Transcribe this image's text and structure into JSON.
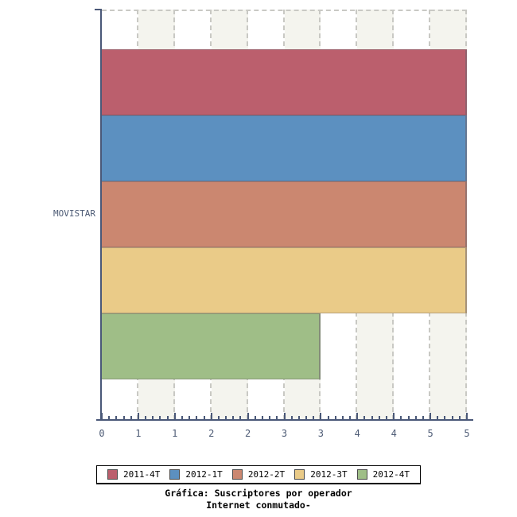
{
  "chart_data": {
    "type": "bar",
    "orientation": "horizontal",
    "categories": [
      "MOVISTAR"
    ],
    "series": [
      {
        "name": "2011-4T",
        "values": [
          5
        ],
        "color": "#bb5f6d"
      },
      {
        "name": "2012-1T",
        "values": [
          5
        ],
        "color": "#5c90c0"
      },
      {
        "name": "2012-2T",
        "values": [
          5
        ],
        "color": "#cb8770"
      },
      {
        "name": "2012-3T",
        "values": [
          5
        ],
        "color": "#eacb88"
      },
      {
        "name": "2012-4T",
        "values": [
          3
        ],
        "color": "#9fbe87"
      }
    ],
    "xlim": [
      0,
      5
    ],
    "x_tick_labels": [
      "0",
      "1",
      "1",
      "2",
      "2",
      "3",
      "3",
      "4",
      "4",
      "5",
      "5"
    ],
    "x_tick_positions": [
      0,
      0.5,
      1,
      1.5,
      2,
      2.5,
      3,
      3.5,
      4,
      4.5,
      5
    ],
    "minor_tick_interval": 0.1,
    "grid": "vertical-dashed-halfunit-stripes",
    "legend_position": "bottom",
    "title": "Gráfica: Suscriptores por operador",
    "subtitle": "Internet conmutado-"
  },
  "colors": {
    "axis": "#4a5878",
    "axis_label": "#4d5b75",
    "stripe_alt": "#f4f4ee",
    "gridline": "#c9c9c4",
    "legend_border": "#000000",
    "title_text": "#000000"
  }
}
